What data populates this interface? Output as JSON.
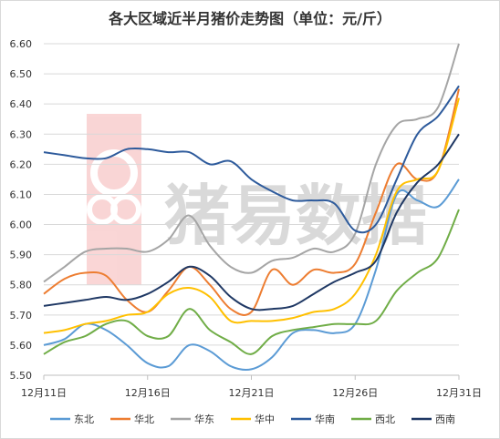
{
  "chart_data": {
    "type": "line",
    "title": "各大区域近半月猪价走势图（单位：元/斤）",
    "watermark": "猪易数据",
    "ylim": [
      5.5,
      6.6
    ],
    "yticks": [
      "5.50",
      "5.60",
      "5.70",
      "5.80",
      "5.90",
      "6.00",
      "6.10",
      "6.20",
      "6.30",
      "6.40",
      "6.50",
      "6.60"
    ],
    "xticks": [
      {
        "label": "12月11日",
        "day": 11
      },
      {
        "label": "12月16日",
        "day": 16
      },
      {
        "label": "12月21日",
        "day": 21
      },
      {
        "label": "12月26日",
        "day": 26
      },
      {
        "label": "12月31日",
        "day": 31
      }
    ],
    "xlim": [
      11,
      31
    ],
    "grid": true,
    "legend_position": "bottom",
    "series": [
      {
        "name": "东北",
        "color": "#5b9bd5",
        "x": [
          11,
          12,
          13,
          14,
          15,
          16,
          17,
          18,
          19,
          20,
          21,
          22,
          23,
          24,
          25,
          26,
          27,
          28,
          29,
          30,
          31
        ],
        "y": [
          5.6,
          5.62,
          5.67,
          5.65,
          5.6,
          5.54,
          5.53,
          5.6,
          5.58,
          5.53,
          5.52,
          5.56,
          5.64,
          5.65,
          5.64,
          5.67,
          5.85,
          6.1,
          6.08,
          6.06,
          6.15
        ]
      },
      {
        "name": "华北",
        "color": "#ed7d31",
        "x": [
          11,
          12,
          13,
          14,
          15,
          16,
          17,
          18,
          19,
          20,
          21,
          22,
          23,
          24,
          25,
          26,
          27,
          28,
          29,
          30,
          31
        ],
        "y": [
          5.77,
          5.82,
          5.84,
          5.83,
          5.75,
          5.71,
          5.78,
          5.86,
          5.8,
          5.72,
          5.71,
          5.85,
          5.8,
          5.85,
          5.84,
          5.87,
          6.04,
          6.2,
          6.15,
          6.18,
          6.45
        ]
      },
      {
        "name": "华东",
        "color": "#a5a5a5",
        "x": [
          11,
          12,
          13,
          14,
          15,
          16,
          17,
          18,
          19,
          20,
          21,
          22,
          23,
          24,
          25,
          26,
          27,
          28,
          29,
          30,
          31
        ],
        "y": [
          5.81,
          5.86,
          5.91,
          5.92,
          5.92,
          5.91,
          5.95,
          6.03,
          5.93,
          5.86,
          5.84,
          5.88,
          5.89,
          5.92,
          5.91,
          5.97,
          6.2,
          6.33,
          6.35,
          6.39,
          6.6
        ]
      },
      {
        "name": "华中",
        "color": "#ffc000",
        "x": [
          11,
          12,
          13,
          14,
          15,
          16,
          17,
          18,
          19,
          20,
          21,
          22,
          23,
          24,
          25,
          26,
          27,
          28,
          29,
          30,
          31
        ],
        "y": [
          5.64,
          5.65,
          5.67,
          5.68,
          5.7,
          5.71,
          5.77,
          5.79,
          5.76,
          5.68,
          5.68,
          5.68,
          5.69,
          5.71,
          5.72,
          5.77,
          5.9,
          6.11,
          6.15,
          6.18,
          6.42
        ]
      },
      {
        "name": "华南",
        "color": "#2e5b9c",
        "x": [
          11,
          12,
          13,
          14,
          15,
          16,
          17,
          18,
          19,
          20,
          21,
          22,
          23,
          24,
          25,
          26,
          27,
          28,
          29,
          30,
          31
        ],
        "y": [
          6.24,
          6.23,
          6.22,
          6.22,
          6.25,
          6.25,
          6.24,
          6.24,
          6.2,
          6.21,
          6.15,
          6.11,
          6.08,
          6.08,
          6.07,
          5.98,
          6.0,
          6.15,
          6.3,
          6.36,
          6.46
        ]
      },
      {
        "name": "西北",
        "color": "#70ad47",
        "x": [
          11,
          12,
          13,
          14,
          15,
          16,
          17,
          18,
          19,
          20,
          21,
          22,
          23,
          24,
          25,
          26,
          27,
          28,
          29,
          30,
          31
        ],
        "y": [
          5.57,
          5.61,
          5.63,
          5.67,
          5.68,
          5.63,
          5.63,
          5.72,
          5.65,
          5.61,
          5.57,
          5.63,
          5.65,
          5.66,
          5.67,
          5.67,
          5.68,
          5.78,
          5.84,
          5.89,
          6.05
        ]
      },
      {
        "name": "西南",
        "color": "#1f3864",
        "x": [
          11,
          12,
          13,
          14,
          15,
          16,
          17,
          18,
          19,
          20,
          21,
          22,
          23,
          24,
          25,
          26,
          27,
          28,
          29,
          30,
          31
        ],
        "y": [
          5.73,
          5.74,
          5.75,
          5.76,
          5.75,
          5.77,
          5.81,
          5.86,
          5.83,
          5.76,
          5.72,
          5.72,
          5.73,
          5.77,
          5.81,
          5.84,
          5.88,
          6.04,
          6.14,
          6.2,
          6.3
        ]
      }
    ]
  }
}
